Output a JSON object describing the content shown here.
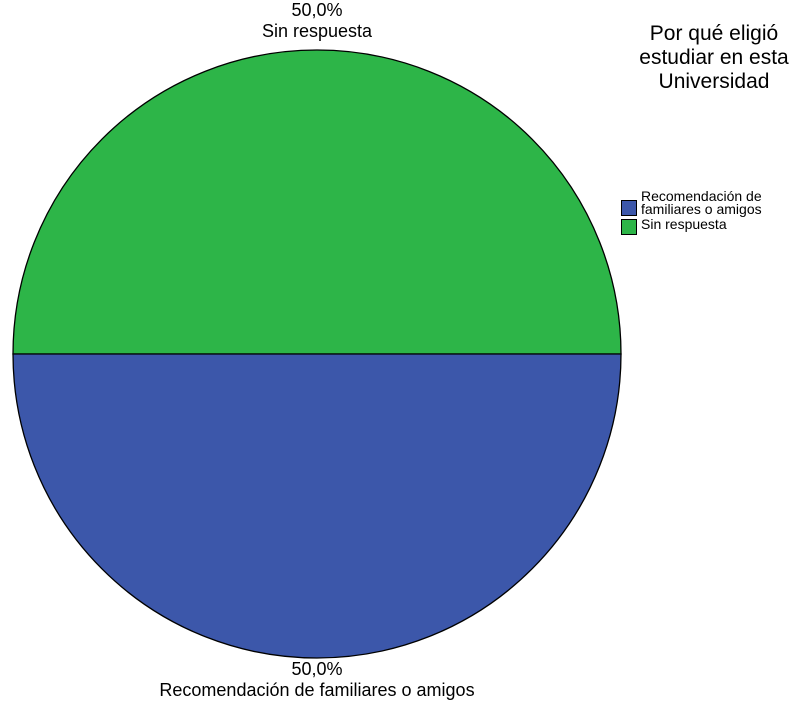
{
  "chart_data": {
    "type": "pie",
    "title": "",
    "slices": [
      {
        "label": "Sin respuesta",
        "value": 50.0,
        "display": "50,0%",
        "color": "#2db548"
      },
      {
        "label": "Recomendación de familiares o amigos",
        "value": 50.0,
        "display": "50,0%",
        "color": "#3c57aa"
      }
    ],
    "legend": {
      "title": "Por qué eligió estudiar en esta Universidad",
      "placement": "right",
      "entries": [
        {
          "label": "Recomendación de familiares o amigos",
          "color": "#3c57aa"
        },
        {
          "label": "Sin respuesta",
          "color": "#2db548"
        }
      ]
    }
  }
}
